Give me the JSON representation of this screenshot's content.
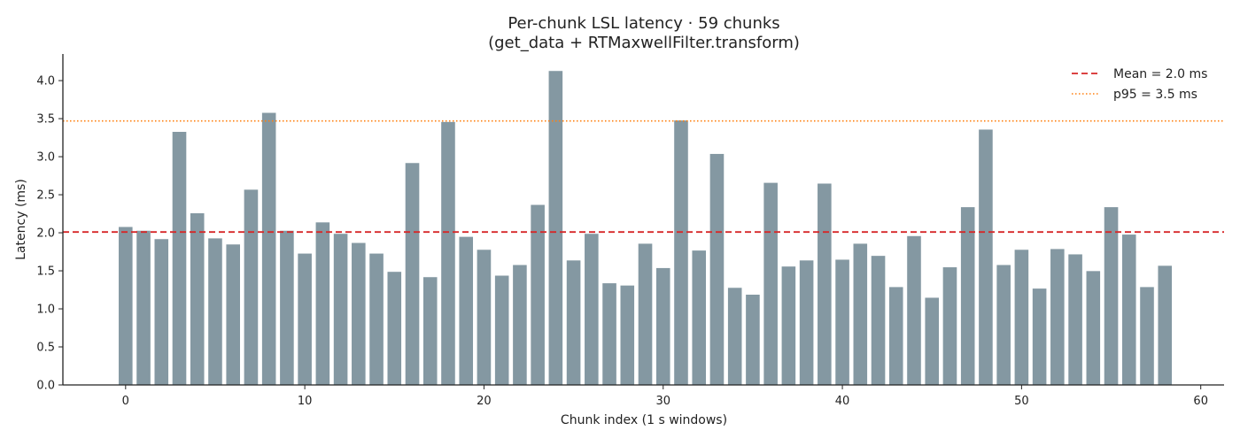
{
  "chart_data": {
    "type": "bar",
    "title_line1": "Per-chunk LSL latency  ·  59 chunks",
    "title_line2": "(get_data + RTMaxwellFilter.transform)",
    "xlabel": "Chunk index (1 s windows)",
    "ylabel": "Latency (ms)",
    "xlim": [
      -3.5,
      61.3
    ],
    "ylim": [
      0,
      4.35
    ],
    "xticks": [
      0,
      10,
      20,
      30,
      40,
      50,
      60
    ],
    "yticks": [
      0.0,
      0.5,
      1.0,
      1.5,
      2.0,
      2.5,
      3.0,
      3.5,
      4.0
    ],
    "grid": false,
    "legend_position": "top-right",
    "bar_color": "#8498a2",
    "x": [
      0,
      1,
      2,
      3,
      4,
      5,
      6,
      7,
      8,
      9,
      10,
      11,
      12,
      13,
      14,
      15,
      16,
      17,
      18,
      19,
      20,
      21,
      22,
      23,
      24,
      25,
      26,
      27,
      28,
      29,
      30,
      31,
      32,
      33,
      34,
      35,
      36,
      37,
      38,
      39,
      40,
      41,
      42,
      43,
      44,
      45,
      46,
      47,
      48,
      49,
      50,
      51,
      52,
      53,
      54,
      55,
      56,
      57,
      58
    ],
    "values": [
      2.08,
      2.03,
      1.92,
      3.33,
      2.26,
      1.93,
      1.85,
      2.57,
      3.58,
      2.03,
      1.73,
      2.14,
      1.99,
      1.87,
      1.73,
      1.49,
      2.92,
      1.42,
      3.46,
      1.95,
      1.78,
      1.44,
      1.58,
      2.37,
      4.13,
      1.64,
      1.99,
      1.34,
      1.31,
      1.86,
      1.54,
      3.48,
      1.77,
      3.04,
      1.28,
      1.19,
      2.66,
      1.56,
      1.64,
      2.65,
      1.65,
      1.86,
      1.7,
      1.29,
      1.96,
      1.15,
      1.55,
      2.34,
      3.36,
      1.58,
      1.78,
      1.27,
      1.79,
      1.72,
      1.5,
      2.34,
      1.98,
      1.29,
      1.57
    ],
    "reference_lines": [
      {
        "label": "Mean = 2.0 ms",
        "value": 2.01,
        "color": "#d62728",
        "style": "dashed"
      },
      {
        "label": "p95 = 3.5 ms",
        "value": 3.47,
        "color": "#ff7f0e",
        "style": "dotted"
      }
    ]
  }
}
